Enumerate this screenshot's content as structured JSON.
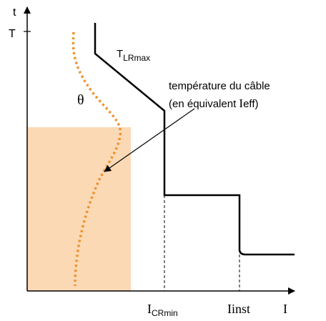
{
  "axes": {
    "y_label": "t",
    "x_label": "I",
    "y_tick": "T"
  },
  "curves": {
    "trip": {
      "label": "T",
      "subscript": "LRmax"
    },
    "temperature": {
      "symbol": "θ"
    }
  },
  "annotation": {
    "line1": "température du câble",
    "line2_prefix": "(en équivalent ",
    "line2_symbol": "I",
    "line2_suffix": "eff)"
  },
  "x_markers": [
    {
      "label": "I",
      "subscript": "CRmin"
    },
    {
      "label": "Iinst"
    }
  ]
}
